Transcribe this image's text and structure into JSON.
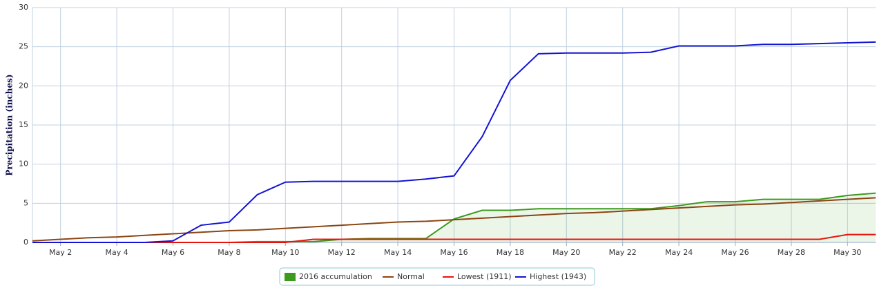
{
  "chart_data": {
    "type": "line",
    "y_label": "Precipitation (inches)",
    "categories": [
      null,
      "May 2",
      null,
      "May 4",
      null,
      "May 6",
      null,
      "May 8",
      null,
      "May 10",
      null,
      "May 12",
      null,
      "May 14",
      null,
      "May 16",
      null,
      "May 18",
      null,
      "May 20",
      null,
      "May 22",
      null,
      "May 24",
      null,
      "May 26",
      null,
      "May 28",
      null,
      "May 30",
      null
    ],
    "ylim": [
      0,
      30
    ],
    "yticks": [
      0,
      5,
      10,
      15,
      20,
      25,
      30
    ],
    "grid": true,
    "legend": "bottom",
    "series": [
      {
        "name": "2016 accumulation",
        "color": "#3c9a1e",
        "area": true,
        "values": [
          0,
          0,
          0,
          0,
          0,
          0,
          0,
          0,
          0.1,
          0.1,
          0.1,
          0.4,
          0.5,
          0.5,
          0.5,
          3.0,
          4.1,
          4.1,
          4.3,
          4.3,
          4.3,
          4.3,
          4.3,
          4.7,
          5.2,
          5.2,
          5.5,
          5.5,
          5.5,
          6.0,
          6.3
        ]
      },
      {
        "name": "Normal",
        "color": "#8b4513",
        "values": [
          0.2,
          0.4,
          0.6,
          0.7,
          0.9,
          1.1,
          1.3,
          1.5,
          1.6,
          1.8,
          2.0,
          2.2,
          2.4,
          2.6,
          2.7,
          2.9,
          3.1,
          3.3,
          3.5,
          3.7,
          3.8,
          4.0,
          4.2,
          4.4,
          4.6,
          4.8,
          4.9,
          5.1,
          5.3,
          5.5,
          5.7
        ]
      },
      {
        "name": "Lowest (1911)",
        "color": "#e8140c",
        "values": [
          0,
          0,
          0,
          0,
          0,
          0,
          0,
          0,
          0,
          0,
          0.4,
          0.4,
          0.4,
          0.4,
          0.4,
          0.4,
          0.4,
          0.4,
          0.4,
          0.4,
          0.4,
          0.4,
          0.4,
          0.4,
          0.4,
          0.4,
          0.4,
          0.4,
          0.4,
          1.0,
          1.0
        ]
      },
      {
        "name": "Highest (1943)",
        "color": "#1414d2",
        "values": [
          0,
          0,
          0,
          0,
          0,
          0.2,
          2.2,
          2.6,
          6.1,
          7.7,
          7.8,
          7.8,
          7.8,
          7.8,
          8.1,
          8.5,
          13.5,
          20.7,
          24.1,
          24.2,
          24.2,
          24.2,
          24.3,
          25.1,
          25.1,
          25.1,
          25.3,
          25.3,
          25.4,
          25.5,
          25.6
        ]
      }
    ]
  }
}
